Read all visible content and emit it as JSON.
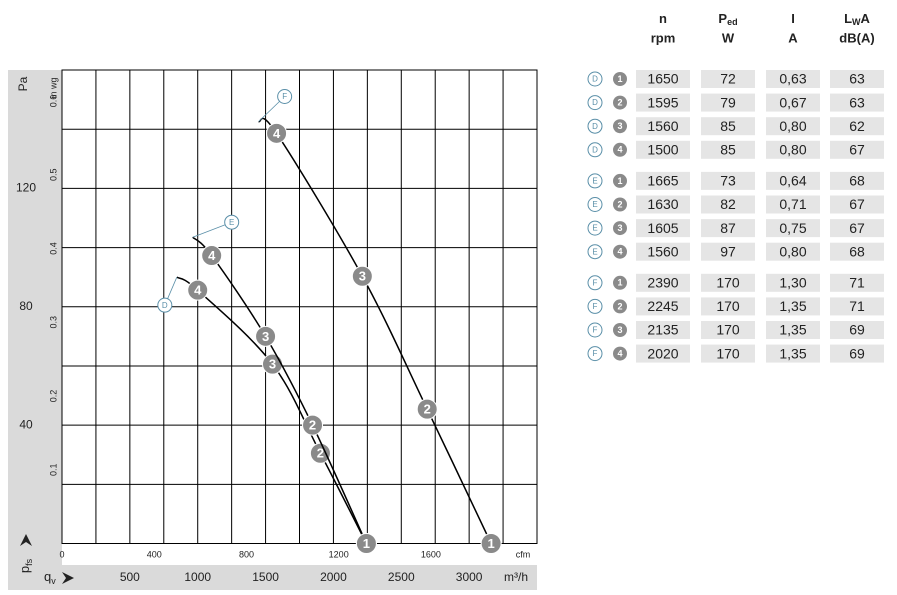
{
  "chart_data": {
    "type": "line",
    "ylabel": "Pa",
    "y2label": "in wg",
    "xlabel": "m³/h",
    "x2label": "cfm",
    "y_symbol": {
      "main": "p",
      "sub": "fs"
    },
    "x_symbol": {
      "main": "q",
      "sub": "v"
    },
    "xlim": [
      0,
      3500
    ],
    "xticks": [
      500,
      1000,
      1500,
      2000,
      2500,
      3000
    ],
    "x2lim": [
      0,
      2060
    ],
    "x2ticks": [
      0,
      400,
      800,
      1200,
      1600
    ],
    "ylim": [
      0,
      160
    ],
    "yticks": [
      40,
      80,
      120
    ],
    "y2lim": [
      0,
      0.642
    ],
    "y2ticks": [
      0.1,
      0.2,
      0.3,
      0.4,
      0.5,
      0.6
    ],
    "xgrid": [
      250,
      500,
      750,
      1000,
      1250,
      1500,
      1750,
      2000,
      2250,
      2500,
      2750,
      3000,
      3250
    ],
    "ygrid": [
      20,
      40,
      60,
      80,
      100,
      120,
      140
    ],
    "grid": true,
    "series": [
      {
        "name": "D",
        "color": "#000000",
        "x": [
          846,
          1000,
          1551,
          1904,
          2243
        ],
        "values": [
          90,
          85.6,
          60.6,
          30.5,
          0
        ],
        "point_labels": [
          null,
          "4",
          "3",
          "2",
          "1"
        ]
      },
      {
        "name": "E",
        "color": "#000000",
        "x": [
          963,
          1103,
          1500,
          1846,
          2243
        ],
        "values": [
          103.5,
          97.3,
          70,
          40,
          0
        ],
        "point_labels": [
          null,
          "4",
          "3",
          "2",
          "1"
        ]
      },
      {
        "name": "F",
        "color": "#000000",
        "x": [
          1449,
          1581,
          2213,
          2691,
          3162
        ],
        "values": [
          142.6,
          138.6,
          90.3,
          45.4,
          0
        ],
        "point_labels": [
          null,
          "4",
          "3",
          "2",
          "1"
        ]
      }
    ]
  },
  "table": {
    "header": [
      {
        "main": "n",
        "unit": "rpm"
      },
      {
        "main": "P",
        "sub": "ed",
        "unit": "W"
      },
      {
        "main": "I",
        "unit": "A"
      },
      {
        "main": "L",
        "sub": "W",
        "main2": "A",
        "unit": "dB(A)"
      }
    ],
    "rows": [
      {
        "curve": "D",
        "point": "1",
        "cells": [
          1650,
          72,
          "0,63",
          63
        ]
      },
      {
        "curve": "D",
        "point": "2",
        "cells": [
          1595,
          79,
          "0,67",
          63
        ]
      },
      {
        "curve": "D",
        "point": "3",
        "cells": [
          1560,
          85,
          "0,80",
          62
        ]
      },
      {
        "curve": "D",
        "point": "4",
        "cells": [
          1500,
          85,
          "0,80",
          67
        ]
      },
      {
        "curve": "E",
        "point": "1",
        "cells": [
          1665,
          73,
          "0,64",
          68
        ]
      },
      {
        "curve": "E",
        "point": "2",
        "cells": [
          1630,
          82,
          "0,71",
          67
        ]
      },
      {
        "curve": "E",
        "point": "3",
        "cells": [
          1605,
          87,
          "0,75",
          67
        ]
      },
      {
        "curve": "E",
        "point": "4",
        "cells": [
          1560,
          97,
          "0,80",
          68
        ]
      },
      {
        "curve": "F",
        "point": "1",
        "cells": [
          2390,
          170,
          "1,30",
          71
        ]
      },
      {
        "curve": "F",
        "point": "2",
        "cells": [
          2245,
          170,
          "1,35",
          71
        ]
      },
      {
        "curve": "F",
        "point": "3",
        "cells": [
          2135,
          170,
          "1,35",
          69
        ]
      },
      {
        "curve": "F",
        "point": "4",
        "cells": [
          2020,
          170,
          "1,35",
          69
        ]
      }
    ]
  }
}
